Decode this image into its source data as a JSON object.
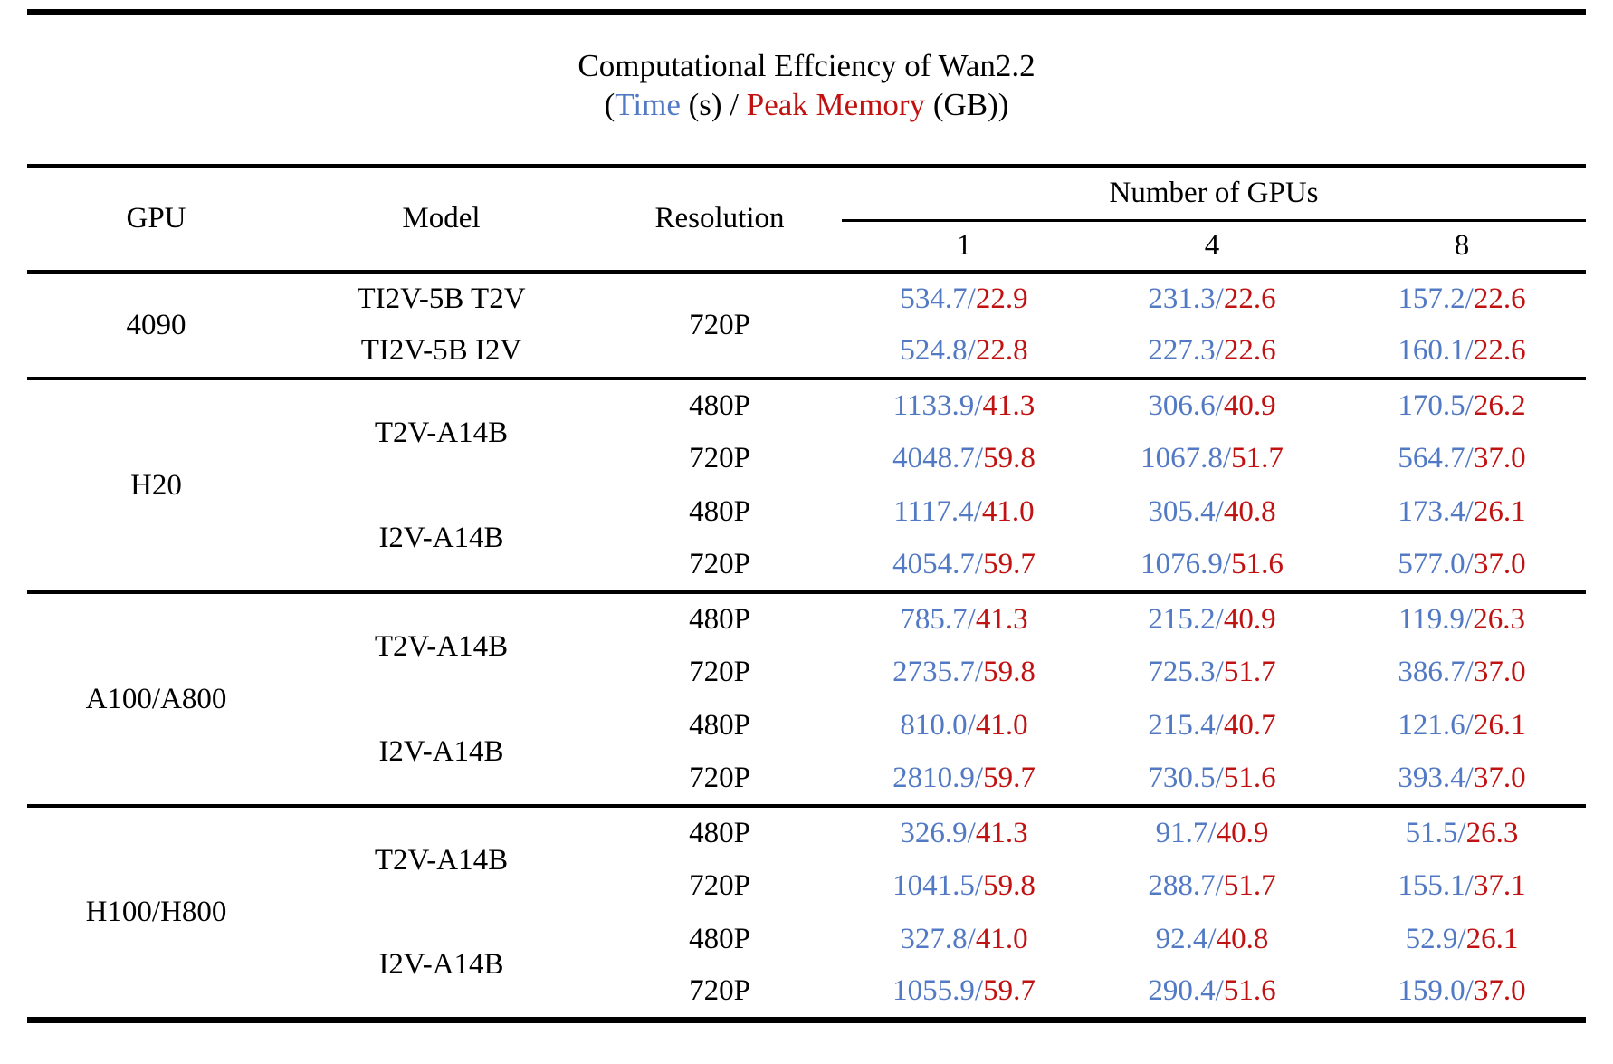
{
  "title": {
    "line1": "Computational Effciency of Wan2.2",
    "sub_open": "(",
    "sub_time": "Time",
    "sub_mid": " (s) / ",
    "sub_memory": "Peak Memory",
    "sub_close": " (GB))"
  },
  "colors": {
    "time_blue": "#5279c4",
    "memory_red": "#c11212"
  },
  "table": {
    "sep": "/",
    "header": {
      "gpu": "GPU",
      "model": "Model",
      "resolution": "Resolution",
      "group": "Number of GPUs",
      "n1": "1",
      "n4": "4",
      "n8": "8"
    },
    "sections": [
      {
        "gpu": "4090",
        "rows": [
          {
            "model": "TI2V-5B T2V",
            "res": "720P",
            "c1": {
              "t": "534.7",
              "m": "22.9"
            },
            "c4": {
              "t": "231.3",
              "m": "22.6"
            },
            "c8": {
              "t": "157.2",
              "m": "22.6"
            }
          },
          {
            "model": "TI2V-5B I2V",
            "c1": {
              "t": "524.8",
              "m": "22.8"
            },
            "c4": {
              "t": "227.3",
              "m": "22.6"
            },
            "c8": {
              "t": "160.1",
              "m": "22.6"
            }
          }
        ]
      },
      {
        "gpu": "H20",
        "rows": [
          {
            "model": "T2V-A14B",
            "res": "480P",
            "c1": {
              "t": "1133.9",
              "m": "41.3"
            },
            "c4": {
              "t": "306.6",
              "m": "40.9"
            },
            "c8": {
              "t": "170.5",
              "m": "26.2"
            }
          },
          {
            "res": "720P",
            "c1": {
              "t": "4048.7",
              "m": "59.8"
            },
            "c4": {
              "t": "1067.8",
              "m": "51.7"
            },
            "c8": {
              "t": "564.7",
              "m": "37.0"
            }
          },
          {
            "model": "I2V-A14B",
            "res": "480P",
            "c1": {
              "t": "1117.4",
              "m": "41.0"
            },
            "c4": {
              "t": "305.4",
              "m": "40.8"
            },
            "c8": {
              "t": "173.4",
              "m": "26.1"
            }
          },
          {
            "res": "720P",
            "c1": {
              "t": "4054.7",
              "m": "59.7"
            },
            "c4": {
              "t": "1076.9",
              "m": "51.6"
            },
            "c8": {
              "t": "577.0",
              "m": "37.0"
            }
          }
        ]
      },
      {
        "gpu": "A100/A800",
        "rows": [
          {
            "model": "T2V-A14B",
            "res": "480P",
            "c1": {
              "t": "785.7",
              "m": "41.3"
            },
            "c4": {
              "t": "215.2",
              "m": "40.9"
            },
            "c8": {
              "t": "119.9",
              "m": "26.3"
            }
          },
          {
            "res": "720P",
            "c1": {
              "t": "2735.7",
              "m": "59.8"
            },
            "c4": {
              "t": "725.3",
              "m": "51.7"
            },
            "c8": {
              "t": "386.7",
              "m": "37.0"
            }
          },
          {
            "model": "I2V-A14B",
            "res": "480P",
            "c1": {
              "t": "810.0",
              "m": "41.0"
            },
            "c4": {
              "t": "215.4",
              "m": "40.7"
            },
            "c8": {
              "t": "121.6",
              "m": "26.1"
            }
          },
          {
            "res": "720P",
            "c1": {
              "t": "2810.9",
              "m": "59.7"
            },
            "c4": {
              "t": "730.5",
              "m": "51.6"
            },
            "c8": {
              "t": "393.4",
              "m": "37.0"
            }
          }
        ]
      },
      {
        "gpu": "H100/H800",
        "rows": [
          {
            "model": "T2V-A14B",
            "res": "480P",
            "c1": {
              "t": "326.9",
              "m": "41.3"
            },
            "c4": {
              "t": "91.7",
              "m": "40.9"
            },
            "c8": {
              "t": "51.5",
              "m": "26.3"
            }
          },
          {
            "res": "720P",
            "c1": {
              "t": "1041.5",
              "m": "59.8"
            },
            "c4": {
              "t": "288.7",
              "m": "51.7"
            },
            "c8": {
              "t": "155.1",
              "m": "37.1"
            }
          },
          {
            "model": "I2V-A14B",
            "res": "480P",
            "c1": {
              "t": "327.8",
              "m": "41.0"
            },
            "c4": {
              "t": "92.4",
              "m": "40.8"
            },
            "c8": {
              "t": "52.9",
              "m": "26.1"
            }
          },
          {
            "res": "720P",
            "c1": {
              "t": "1055.9",
              "m": "59.7"
            },
            "c4": {
              "t": "290.4",
              "m": "51.6"
            },
            "c8": {
              "t": "159.0",
              "m": "37.0"
            }
          }
        ]
      }
    ]
  }
}
